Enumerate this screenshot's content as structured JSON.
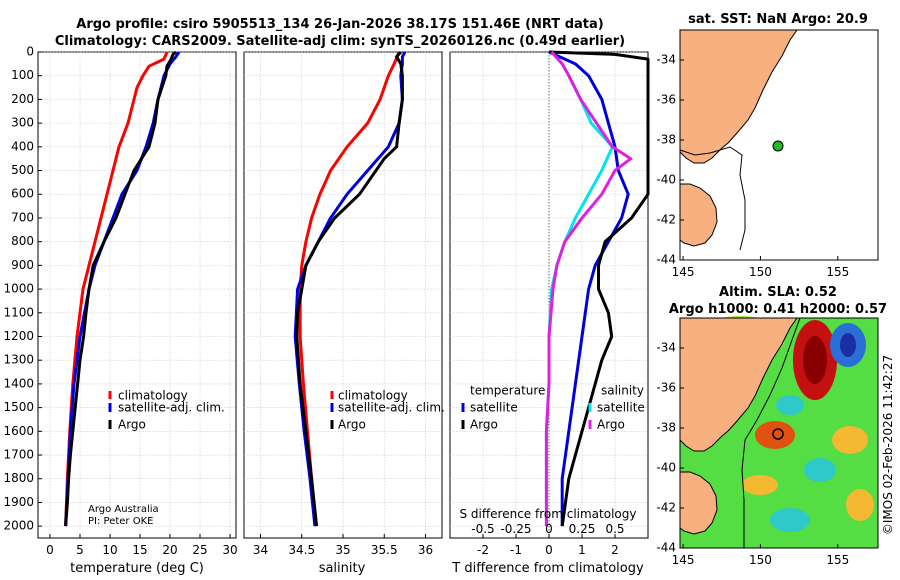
{
  "header": {
    "title_line1": "Argo profile: csiro 5905513_134 26-Jan-2026 38.17S 151.46E (NRT data)",
    "title_line2": "Climatology: CARS2009. Satellite-adj clim: synTS_20260126.nc (0.49d earlier)"
  },
  "credit": {
    "line1": "Argo Australia",
    "line2": "PI: Peter OKE"
  },
  "colors": {
    "climatology": "#ff0000",
    "satellite": "#0000dd",
    "argo": "#000000",
    "sat_salinity": "#00e5e5",
    "argo_salinity": "#e020e0",
    "land": "#f8b080",
    "ocean_map": "#ffffff"
  },
  "side": {
    "sst_title": "sat. SST: NaN Argo: 20.9",
    "sla_title_1": "Altim. SLA: 0.52",
    "sla_title_2": "Argo h1000: 0.41 h2000: 0.57",
    "stamp": "©IMOS 02-Feb-2026 11:42:27",
    "map_xticks": [
      "145",
      "150",
      "155"
    ],
    "map_yticks": [
      "-34",
      "-36",
      "-38",
      "-40",
      "-42",
      "-44"
    ]
  },
  "chart_data": [
    {
      "type": "line",
      "title": "",
      "xlabel": "temperature (deg C)",
      "ylabel": "",
      "xlim": [
        -2,
        31
      ],
      "ylim": [
        2050,
        0
      ],
      "xticks": [
        "0",
        "5",
        "10",
        "15",
        "20",
        "25",
        "30"
      ],
      "yticks": [
        "0",
        "100",
        "200",
        "300",
        "400",
        "500",
        "600",
        "700",
        "800",
        "900",
        "1000",
        "1100",
        "1200",
        "1300",
        "1400",
        "1500",
        "1600",
        "1700",
        "1800",
        "1900",
        "2000"
      ],
      "legend": [
        "climatology",
        "satellite-adj. clim.",
        "Argo"
      ],
      "series": [
        {
          "name": "climatology",
          "color": "#ff0000",
          "depth": [
            0,
            30,
            60,
            100,
            150,
            200,
            300,
            400,
            500,
            600,
            700,
            800,
            900,
            1000,
            1200,
            1400,
            1600,
            1800,
            2000
          ],
          "values": [
            19.5,
            19.0,
            16.5,
            15.5,
            14.5,
            14.0,
            13.0,
            11.5,
            10.5,
            9.5,
            8.5,
            7.5,
            6.5,
            5.5,
            4.5,
            3.8,
            3.3,
            2.9,
            2.6
          ]
        },
        {
          "name": "satellite-adj. clim.",
          "color": "#0000dd",
          "depth": [
            0,
            20,
            50,
            100,
            150,
            200,
            300,
            400,
            500,
            600,
            700,
            800,
            900,
            1000,
            1200,
            1400,
            1600,
            1800,
            2000
          ],
          "values": [
            21.5,
            21.0,
            20.0,
            19.0,
            18.5,
            18.0,
            17.2,
            16.0,
            14.5,
            12.0,
            10.5,
            9.0,
            7.5,
            6.5,
            5.0,
            4.0,
            3.4,
            3.0,
            2.6
          ]
        },
        {
          "name": "Argo",
          "color": "#000000",
          "depth": [
            0,
            10,
            30,
            60,
            100,
            200,
            300,
            400,
            500,
            600,
            700,
            800,
            900,
            1000,
            1100,
            1200,
            1300,
            1400,
            1500,
            1600,
            1700,
            1800,
            1900,
            2000
          ],
          "values": [
            21.0,
            20.5,
            20.2,
            19.5,
            19.3,
            18.0,
            17.5,
            16.5,
            14.0,
            12.5,
            11.0,
            9.0,
            7.2,
            6.5,
            6.0,
            5.6,
            5.0,
            4.6,
            4.2,
            3.8,
            3.4,
            3.1,
            2.9,
            2.6
          ]
        }
      ]
    },
    {
      "type": "line",
      "title": "",
      "xlabel": "salinity",
      "ylabel": "",
      "xlim": [
        33.8,
        36.2
      ],
      "ylim": [
        2050,
        0
      ],
      "xticks": [
        "34",
        "34.5",
        "35",
        "35.5",
        "36"
      ],
      "legend": [
        "climatology",
        "satellite-adj. clim.",
        "Argo"
      ],
      "series": [
        {
          "name": "climatology",
          "color": "#ff0000",
          "depth": [
            0,
            50,
            100,
            200,
            300,
            400,
            500,
            600,
            700,
            800,
            900,
            1000,
            1200,
            1400,
            1600,
            1800,
            2000
          ],
          "values": [
            35.68,
            35.62,
            35.55,
            35.45,
            35.3,
            35.05,
            34.85,
            34.72,
            34.62,
            34.55,
            34.5,
            34.48,
            34.48,
            34.52,
            34.57,
            34.62,
            34.67
          ]
        },
        {
          "name": "satellite-adj. clim.",
          "color": "#0000dd",
          "depth": [
            0,
            20,
            50,
            100,
            200,
            300,
            400,
            500,
            600,
            700,
            800,
            900,
            1000,
            1200,
            1400,
            1600,
            1800,
            2000
          ],
          "values": [
            35.75,
            35.72,
            35.72,
            35.7,
            35.72,
            35.68,
            35.55,
            35.3,
            35.05,
            34.85,
            34.7,
            34.55,
            34.45,
            34.42,
            34.47,
            34.53,
            34.6,
            34.66
          ]
        },
        {
          "name": "Argo",
          "color": "#000000",
          "depth": [
            0,
            20,
            50,
            100,
            200,
            300,
            400,
            450,
            500,
            600,
            700,
            800,
            900,
            1000,
            1100,
            1200,
            1400,
            1600,
            1800,
            2000
          ],
          "values": [
            35.7,
            35.65,
            35.7,
            35.72,
            35.72,
            35.68,
            35.65,
            35.5,
            35.4,
            35.2,
            34.9,
            34.7,
            34.55,
            34.5,
            34.45,
            34.44,
            34.48,
            34.55,
            34.62,
            34.68
          ]
        }
      ]
    },
    {
      "type": "line",
      "title": "",
      "xlabel": "T difference from climatology",
      "x2label": "S difference from climatology",
      "ylabel": "",
      "xlim": [
        -3,
        3
      ],
      "x2lim": [
        -0.75,
        0.75
      ],
      "ylim": [
        2050,
        0
      ],
      "xticks": [
        "-2",
        "-1",
        "0",
        "1",
        "2"
      ],
      "x2ticks": [
        "-0.5",
        "-0.25",
        "0",
        "0.25",
        "0.5"
      ],
      "legend_temperature": [
        "temperature",
        "satellite",
        "Argo"
      ],
      "legend_salinity": [
        "salinity",
        "satellite",
        "Argo"
      ],
      "series": [
        {
          "name": "T satellite",
          "color": "#0000dd",
          "depth": [
            0,
            50,
            100,
            200,
            300,
            400,
            500,
            600,
            700,
            800,
            900,
            1000,
            1200,
            1400,
            1600,
            1800,
            2000
          ],
          "values": [
            0.0,
            0.8,
            1.2,
            1.6,
            1.8,
            2.0,
            2.1,
            2.4,
            2.2,
            1.8,
            1.4,
            1.2,
            1.0,
            0.8,
            0.6,
            0.4,
            0.4
          ]
        },
        {
          "name": "T Argo",
          "color": "#000000",
          "depth": [
            0,
            10,
            30,
            60,
            100,
            200,
            300,
            400,
            500,
            600,
            700,
            800,
            900,
            1000,
            1100,
            1200,
            1300,
            1400,
            1500,
            1600,
            1700,
            1800,
            1900,
            2000
          ],
          "values": [
            0.0,
            2.0,
            3.0,
            3.0,
            3.0,
            3.0,
            3.0,
            3.0,
            3.0,
            3.0,
            2.5,
            1.7,
            1.5,
            1.5,
            1.8,
            1.9,
            1.6,
            1.4,
            1.2,
            1.0,
            0.8,
            0.6,
            0.5,
            0.4
          ]
        },
        {
          "name": "S satellite",
          "color": "#00e5e5",
          "depth": [
            0,
            50,
            100,
            200,
            300,
            400,
            500,
            600,
            700,
            800,
            900,
            1000,
            1200,
            1400,
            1600,
            1800,
            2000
          ],
          "values": [
            0.02,
            0.1,
            0.15,
            0.24,
            0.32,
            0.48,
            0.4,
            0.3,
            0.2,
            0.12,
            0.06,
            0.02,
            0.0,
            0.0,
            -0.02,
            -0.02,
            -0.02
          ]
        },
        {
          "name": "S Argo",
          "color": "#e020e0",
          "depth": [
            0,
            50,
            100,
            200,
            300,
            400,
            450,
            500,
            600,
            700,
            800,
            900,
            1000,
            1200,
            1400,
            1600,
            1800,
            2000
          ],
          "values": [
            0.02,
            0.1,
            0.15,
            0.24,
            0.36,
            0.48,
            0.62,
            0.5,
            0.4,
            0.25,
            0.12,
            0.06,
            0.03,
            0.0,
            0.0,
            -0.02,
            -0.02,
            -0.02
          ]
        }
      ]
    }
  ]
}
